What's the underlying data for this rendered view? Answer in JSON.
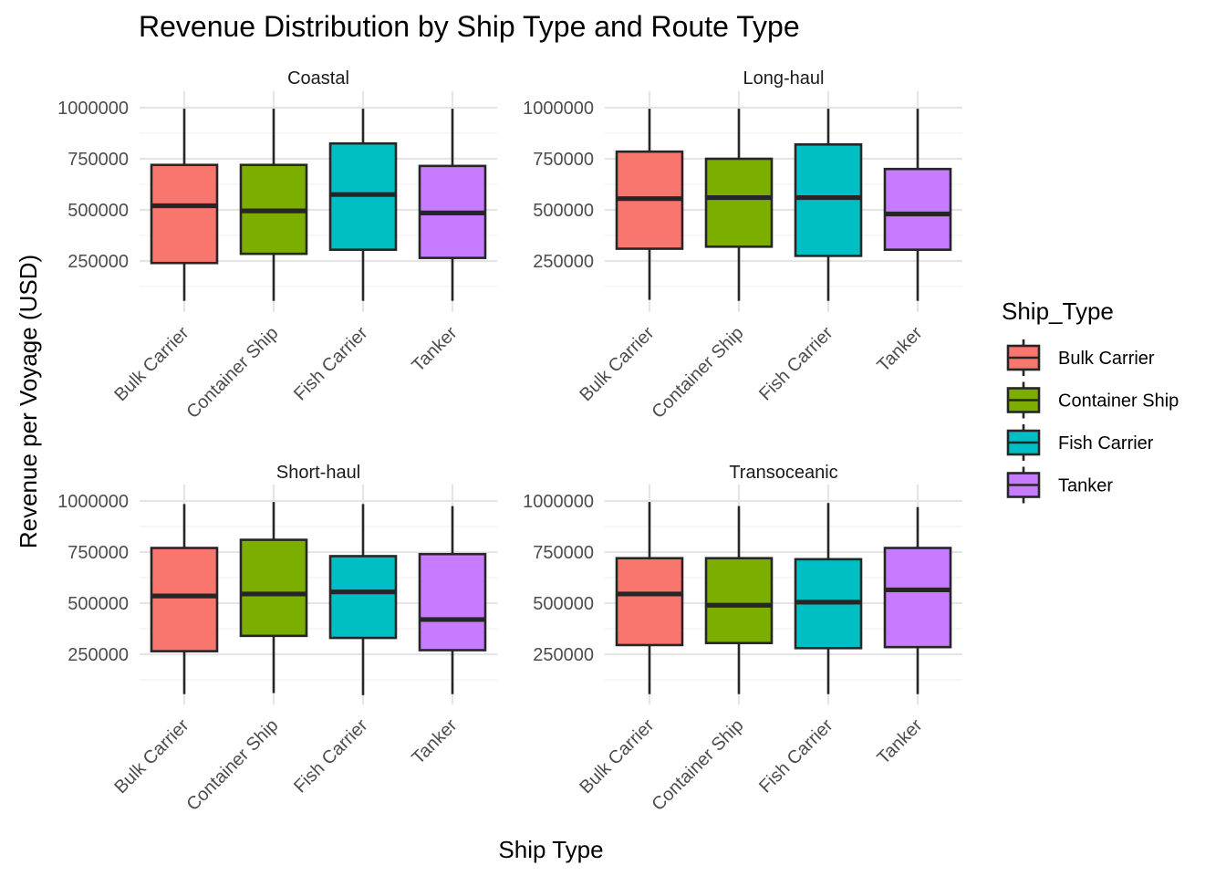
{
  "chart_data": {
    "type": "boxplot",
    "title": "Revenue Distribution by Ship Type and Route Type",
    "xlabel": "Ship Type",
    "ylabel": "Revenue per Voyage (USD)",
    "categories": [
      "Bulk Carrier",
      "Container Ship",
      "Fish Carrier",
      "Tanker"
    ],
    "y_ticks": [
      250000,
      500000,
      750000,
      1000000
    ],
    "y_tick_labels": [
      "250000",
      "500000",
      "750000",
      "1000000"
    ],
    "ylim": [
      30000,
      1040000
    ],
    "grid": true,
    "legend": {
      "title": "Ship_Type",
      "position": "right",
      "entries": [
        "Bulk Carrier",
        "Container Ship",
        "Fish Carrier",
        "Tanker"
      ]
    },
    "colors": {
      "Bulk Carrier": "#F8766D",
      "Container Ship": "#7CAE00",
      "Fish Carrier": "#00BFC4",
      "Tanker": "#C77CFF"
    },
    "panels": [
      {
        "strip": "Coastal",
        "boxes": [
          {
            "category": "Bulk Carrier",
            "min": 55000,
            "q1": 240000,
            "median": 520000,
            "q3": 720000,
            "max": 995000
          },
          {
            "category": "Container Ship",
            "min": 55000,
            "q1": 285000,
            "median": 495000,
            "q3": 720000,
            "max": 995000
          },
          {
            "category": "Fish Carrier",
            "min": 55000,
            "q1": 305000,
            "median": 575000,
            "q3": 825000,
            "max": 995000
          },
          {
            "category": "Tanker",
            "min": 55000,
            "q1": 265000,
            "median": 485000,
            "q3": 715000,
            "max": 995000
          }
        ]
      },
      {
        "strip": "Long-haul",
        "boxes": [
          {
            "category": "Bulk Carrier",
            "min": 60000,
            "q1": 310000,
            "median": 555000,
            "q3": 785000,
            "max": 995000
          },
          {
            "category": "Container Ship",
            "min": 55000,
            "q1": 320000,
            "median": 560000,
            "q3": 750000,
            "max": 995000
          },
          {
            "category": "Fish Carrier",
            "min": 55000,
            "q1": 275000,
            "median": 560000,
            "q3": 820000,
            "max": 995000
          },
          {
            "category": "Tanker",
            "min": 55000,
            "q1": 305000,
            "median": 480000,
            "q3": 700000,
            "max": 995000
          }
        ]
      },
      {
        "strip": "Short-haul",
        "boxes": [
          {
            "category": "Bulk Carrier",
            "min": 55000,
            "q1": 265000,
            "median": 535000,
            "q3": 770000,
            "max": 985000
          },
          {
            "category": "Container Ship",
            "min": 60000,
            "q1": 340000,
            "median": 545000,
            "q3": 810000,
            "max": 995000
          },
          {
            "category": "Fish Carrier",
            "min": 50000,
            "q1": 330000,
            "median": 555000,
            "q3": 730000,
            "max": 985000
          },
          {
            "category": "Tanker",
            "min": 55000,
            "q1": 270000,
            "median": 420000,
            "q3": 740000,
            "max": 975000
          }
        ]
      },
      {
        "strip": "Transoceanic",
        "boxes": [
          {
            "category": "Bulk Carrier",
            "min": 55000,
            "q1": 295000,
            "median": 545000,
            "q3": 720000,
            "max": 995000
          },
          {
            "category": "Container Ship",
            "min": 55000,
            "q1": 305000,
            "median": 490000,
            "q3": 720000,
            "max": 975000
          },
          {
            "category": "Fish Carrier",
            "min": 55000,
            "q1": 280000,
            "median": 505000,
            "q3": 715000,
            "max": 990000
          },
          {
            "category": "Tanker",
            "min": 55000,
            "q1": 285000,
            "median": 565000,
            "q3": 770000,
            "max": 970000
          }
        ]
      }
    ]
  }
}
